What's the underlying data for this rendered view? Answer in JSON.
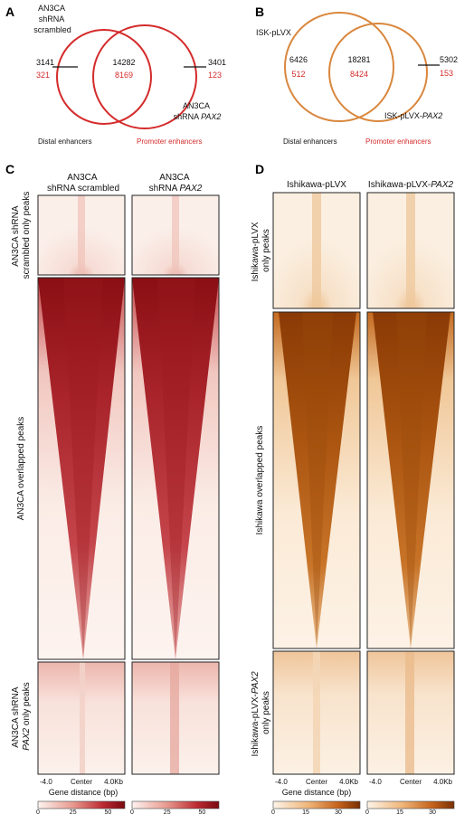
{
  "panelA": {
    "label": "A",
    "set1": [
      "AN3CA",
      "shRNA",
      "scrambled"
    ],
    "set2": [
      "AN3CA",
      "shRNA ",
      "PAX2"
    ],
    "left": {
      "distal": "3141",
      "promoter": "321"
    },
    "middle": {
      "distal": "14282",
      "promoter": "8169"
    },
    "right": {
      "distal": "3401",
      "promoter": "123"
    },
    "legend_distal": "Distal enhancers",
    "legend_promoter": "Promoter enhancers",
    "circle_color": "#d42b2b"
  },
  "panelB": {
    "label": "B",
    "set1": "ISK-pLVX",
    "set2_prefix": "ISK-pLVX-",
    "set2_gene": "PAX2",
    "left": {
      "distal": "6426",
      "promoter": "512"
    },
    "middle": {
      "distal": "18281",
      "promoter": "8424"
    },
    "right": {
      "distal": "5302",
      "promoter": "153"
    },
    "legend_distal": "Distal enhancers",
    "legend_promoter": "Promoter enhancers",
    "circle_color": "#d9873d"
  },
  "panelC": {
    "label": "C",
    "col1": [
      "AN3CA",
      "shRNA scrambled"
    ],
    "col2": [
      "AN3CA",
      "shRNA ",
      "PAX2"
    ],
    "row1": [
      "AN3CA shRNA",
      "scrambled only peaks"
    ],
    "row2": "AN3CA overlapped peaks",
    "row3": [
      "AN3CA shRNA",
      "PAX2",
      " only peaks"
    ],
    "ticks": [
      "-4.0",
      "Center",
      "4.0Kb"
    ],
    "xlabel": "Gene distance (bp)",
    "colorbar_ticks": [
      "0",
      "25",
      "50"
    ],
    "colorbar_range": [
      0,
      62
    ],
    "color_low": "#fdf3ef",
    "color_high": "#8a0f14"
  },
  "panelD": {
    "label": "D",
    "col1": "Ishikawa-pLVX",
    "col2_prefix": "Ishikawa-pLVX-",
    "col2_gene": "PAX2",
    "row1": [
      "Ishikawa-pLVX",
      "only peaks"
    ],
    "row2": "Ishikawa overlapped peaks",
    "row3_prefix": "Ishikawa-pLVX-",
    "row3_gene": "PAX2",
    "row3_suffix": "only peaks",
    "ticks": [
      "-4.0",
      "Center",
      "4.0Kb"
    ],
    "xlabel": "Gene distance (bp)",
    "colorbar_ticks": [
      "0",
      "15",
      "30"
    ],
    "colorbar_range": [
      0,
      40
    ],
    "color_low": "#fdf4e8",
    "color_high": "#8a3a05"
  }
}
